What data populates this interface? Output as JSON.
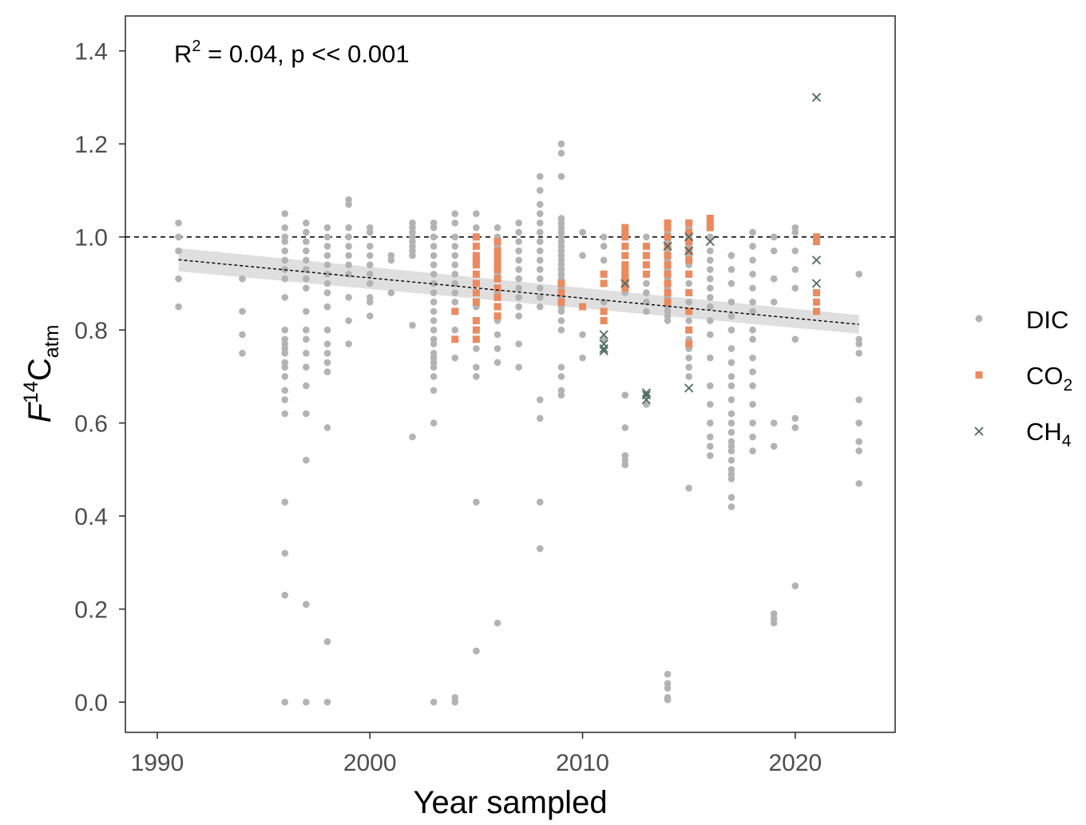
{
  "colors": {
    "DIC": "#b3b3b3",
    "CO2": "#ec8a5f",
    "CH4": "#4f6b63",
    "band": "#d9d9d9",
    "panel_border": "#333333",
    "tick": "#333333"
  },
  "annotation": {
    "r_letter": "R",
    "r_exp": "2",
    "rest": " = 0.04, p << 0.001"
  },
  "legend": {
    "position": "right",
    "items": [
      {
        "key": "DIC",
        "base": "DIC",
        "sub": "",
        "marker": "circle"
      },
      {
        "key": "CO2",
        "base": "CO",
        "sub": "2",
        "marker": "square"
      },
      {
        "key": "CH4",
        "base": "CH",
        "sub": "4",
        "marker": "cross"
      }
    ]
  },
  "chart_data": {
    "type": "scatter",
    "xlabel": "Year sampled",
    "ylabel": {
      "f": "F",
      "sup": "14",
      "c": "C",
      "sub": "atm"
    },
    "xlim": [
      1988.5,
      2024.7
    ],
    "ylim": [
      -0.065,
      1.475
    ],
    "xticks": [
      1990,
      2000,
      2010,
      2020
    ],
    "xtick_labels": [
      "1990",
      "2000",
      "2010",
      "2020"
    ],
    "yticks": [
      0.0,
      0.2,
      0.4,
      0.6,
      0.8,
      1.0,
      1.2,
      1.4
    ],
    "ytick_labels": [
      "0.0",
      "0.2",
      "0.4",
      "0.6",
      "0.8",
      "1.0",
      "1.2",
      "1.4"
    ],
    "grid": false,
    "reference_line": {
      "y": 1.0,
      "style": "dashed"
    },
    "trend": {
      "x": [
        1991,
        2023
      ],
      "y": [
        0.951,
        0.812
      ],
      "ci_upper": [
        0.976,
        0.832
      ],
      "ci_lower": [
        0.926,
        0.792
      ],
      "style": "dashed"
    },
    "series": [
      {
        "name": "DIC",
        "marker": "circle",
        "x": [
          1991,
          1991,
          1991,
          1991,
          1991,
          1994,
          1994,
          1994,
          1994,
          1996,
          1996,
          1996,
          1996,
          1996,
          1996,
          1996,
          1996,
          1996,
          1996,
          1996,
          1996,
          1996,
          1996,
          1996,
          1996,
          1996,
          1996,
          1996,
          1996,
          1996,
          1996,
          1996,
          1996,
          1997,
          1997,
          1997,
          1997,
          1997,
          1997,
          1997,
          1997,
          1997,
          1997,
          1997,
          1997,
          1997,
          1997,
          1997,
          1997,
          1997,
          1997,
          1998,
          1998,
          1998,
          1998,
          1998,
          1998,
          1998,
          1998,
          1998,
          1998,
          1998,
          1998,
          1998,
          1998,
          1998,
          1998,
          1998,
          1999,
          1999,
          1999,
          1999,
          1999,
          1999,
          1999,
          1999,
          1999,
          1999,
          1999,
          2000,
          2000,
          2000,
          2000,
          2000,
          2000,
          2000,
          2000,
          2000,
          2000,
          2001,
          2001,
          2001,
          2002,
          2002,
          2002,
          2002,
          2002,
          2002,
          2002,
          2002,
          2002,
          2002,
          2003,
          2003,
          2003,
          2003,
          2003,
          2003,
          2003,
          2003,
          2003,
          2003,
          2003,
          2003,
          2003,
          2003,
          2003,
          2003,
          2003,
          2003,
          2003,
          2003,
          2003,
          2003,
          2003,
          2004,
          2004,
          2004,
          2004,
          2004,
          2004,
          2004,
          2004,
          2004,
          2004,
          2004,
          2004,
          2004,
          2004,
          2004,
          2004,
          2005,
          2005,
          2005,
          2005,
          2005,
          2005,
          2005,
          2005,
          2005,
          2005,
          2005,
          2005,
          2005,
          2006,
          2006,
          2006,
          2006,
          2006,
          2006,
          2006,
          2006,
          2006,
          2006,
          2006,
          2006,
          2007,
          2007,
          2007,
          2007,
          2007,
          2007,
          2007,
          2007,
          2007,
          2007,
          2007,
          2007,
          2007,
          2008,
          2008,
          2008,
          2008,
          2008,
          2008,
          2008,
          2008,
          2008,
          2008,
          2008,
          2008,
          2008,
          2008,
          2008,
          2008,
          2008,
          2008,
          2009,
          2009,
          2009,
          2009,
          2009,
          2009,
          2009,
          2009,
          2009,
          2009,
          2009,
          2009,
          2009,
          2009,
          2009,
          2009,
          2009,
          2009,
          2009,
          2009,
          2009,
          2009,
          2009,
          2009,
          2009,
          2009,
          2009,
          2009,
          2009,
          2009,
          2010,
          2010,
          2010,
          2010,
          2011,
          2011,
          2011,
          2011,
          2011,
          2011,
          2012,
          2012,
          2012,
          2012,
          2012,
          2012,
          2012,
          2012,
          2012,
          2012,
          2012,
          2012,
          2012,
          2013,
          2013,
          2013,
          2013,
          2013,
          2013,
          2013,
          2013,
          2013,
          2013,
          2013,
          2014,
          2014,
          2014,
          2014,
          2014,
          2014,
          2014,
          2014,
          2014,
          2014,
          2014,
          2014,
          2014,
          2014,
          2014,
          2014,
          2014,
          2014,
          2014,
          2014,
          2014,
          2014,
          2014,
          2014,
          2014,
          2014,
          2014,
          2015,
          2015,
          2015,
          2015,
          2015,
          2015,
          2015,
          2015,
          2015,
          2015,
          2015,
          2015,
          2015,
          2015,
          2015,
          2015,
          2015,
          2015,
          2016,
          2016,
          2016,
          2016,
          2016,
          2016,
          2016,
          2016,
          2016,
          2016,
          2016,
          2016,
          2016,
          2016,
          2016,
          2016,
          2016,
          2016,
          2017,
          2017,
          2017,
          2017,
          2017,
          2017,
          2017,
          2017,
          2017,
          2017,
          2017,
          2017,
          2017,
          2017,
          2017,
          2017,
          2017,
          2017,
          2017,
          2017,
          2017,
          2017,
          2017,
          2017,
          2018,
          2018,
          2018,
          2018,
          2018,
          2018,
          2018,
          2018,
          2018,
          2018,
          2018,
          2018,
          2018,
          2018,
          2018,
          2018,
          2019,
          2019,
          2019,
          2019,
          2019,
          2019,
          2019,
          2019,
          2019,
          2020,
          2020,
          2020,
          2020,
          2020,
          2020,
          2020,
          2020,
          2020,
          2023,
          2023,
          2023,
          2023,
          2023,
          2023,
          2023,
          2023,
          2023
        ],
        "y": [
          1.03,
          1.0,
          0.97,
          0.91,
          0.85,
          0.91,
          0.84,
          0.79,
          0.75,
          1.05,
          1.02,
          1.0,
          0.99,
          0.97,
          0.95,
          0.93,
          0.91,
          0.87,
          0.8,
          0.78,
          0.77,
          0.76,
          0.75,
          0.73,
          0.72,
          0.7,
          0.67,
          0.65,
          0.62,
          0.43,
          0.32,
          0.23,
          0.0,
          1.03,
          1.01,
          0.99,
          0.97,
          0.95,
          0.93,
          0.91,
          0.89,
          0.84,
          0.8,
          0.78,
          0.75,
          0.72,
          0.68,
          0.62,
          0.52,
          0.21,
          0.0,
          1.02,
          1.0,
          0.98,
          0.96,
          0.94,
          0.92,
          0.9,
          0.88,
          0.85,
          0.8,
          0.77,
          0.75,
          0.73,
          0.71,
          0.59,
          0.13,
          0.0,
          1.08,
          1.07,
          1.02,
          1.0,
          0.98,
          0.96,
          0.94,
          0.92,
          0.87,
          0.82,
          0.77,
          1.02,
          1.01,
          0.98,
          0.96,
          0.94,
          0.92,
          0.9,
          0.87,
          0.86,
          0.83,
          0.96,
          0.95,
          0.88,
          1.03,
          1.02,
          1.01,
          1.0,
          0.99,
          0.98,
          0.97,
          0.96,
          0.81,
          0.57,
          1.03,
          1.02,
          1.0,
          0.98,
          0.96,
          0.94,
          0.92,
          0.9,
          0.88,
          0.86,
          0.84,
          0.82,
          0.8,
          0.78,
          0.77,
          0.75,
          0.74,
          0.73,
          0.72,
          0.7,
          0.67,
          0.6,
          0.0,
          1.05,
          1.03,
          1.0,
          0.98,
          0.96,
          0.94,
          0.92,
          0.9,
          0.88,
          0.86,
          0.84,
          0.8,
          0.78,
          0.74,
          0.0,
          0.01,
          1.05,
          1.02,
          1.0,
          0.98,
          0.95,
          0.9,
          0.85,
          0.8,
          0.76,
          0.72,
          0.7,
          0.43,
          0.11,
          1.02,
          1.0,
          0.98,
          0.95,
          0.92,
          0.88,
          0.85,
          0.82,
          0.79,
          0.76,
          0.73,
          0.17,
          1.03,
          1.01,
          0.99,
          0.97,
          0.95,
          0.93,
          0.91,
          0.89,
          0.87,
          0.85,
          0.83,
          0.77,
          0.72,
          1.13,
          1.1,
          1.07,
          1.05,
          1.03,
          1.01,
          0.99,
          0.97,
          0.95,
          0.93,
          0.91,
          0.89,
          0.87,
          0.85,
          0.65,
          0.61,
          0.43,
          0.33,
          1.2,
          1.18,
          1.13,
          1.04,
          1.03,
          1.02,
          1.01,
          1.0,
          0.99,
          0.98,
          0.97,
          0.96,
          0.95,
          0.94,
          0.93,
          0.92,
          0.91,
          0.9,
          0.89,
          0.88,
          0.87,
          0.86,
          0.85,
          0.84,
          0.82,
          0.8,
          0.72,
          0.7,
          0.67,
          0.66,
          1.01,
          0.96,
          0.79,
          0.74,
          1.0,
          0.98,
          0.95,
          0.86,
          0.82,
          0.78,
          1.02,
          1.0,
          0.98,
          0.96,
          0.94,
          0.92,
          0.9,
          0.88,
          0.66,
          0.59,
          0.53,
          0.52,
          0.51,
          1.0,
          0.98,
          0.96,
          0.94,
          0.92,
          0.9,
          0.88,
          0.86,
          0.84,
          0.66,
          0.64,
          1.03,
          1.02,
          1.01,
          1.0,
          0.99,
          0.98,
          0.97,
          0.96,
          0.95,
          0.94,
          0.93,
          0.92,
          0.91,
          0.9,
          0.89,
          0.88,
          0.87,
          0.86,
          0.85,
          0.84,
          0.83,
          0.82,
          0.06,
          0.04,
          0.03,
          0.01,
          0.005,
          1.02,
          1.0,
          0.98,
          0.96,
          0.94,
          0.92,
          0.9,
          0.88,
          0.86,
          0.84,
          0.82,
          0.8,
          0.78,
          0.76,
          0.74,
          0.72,
          0.7,
          0.46,
          1.03,
          1.0,
          0.97,
          0.95,
          0.93,
          0.91,
          0.89,
          0.87,
          0.85,
          0.82,
          0.79,
          0.74,
          0.68,
          0.64,
          0.6,
          0.57,
          0.55,
          0.53,
          0.96,
          0.93,
          0.9,
          0.86,
          0.83,
          0.8,
          0.76,
          0.73,
          0.7,
          0.68,
          0.65,
          0.62,
          0.6,
          0.58,
          0.56,
          0.55,
          0.54,
          0.52,
          0.5,
          0.49,
          0.48,
          0.44,
          0.42,
          0.96,
          1.01,
          0.98,
          0.95,
          0.92,
          0.89,
          0.86,
          0.84,
          0.8,
          0.78,
          0.74,
          0.71,
          0.68,
          0.64,
          0.6,
          0.57,
          0.54,
          1.0,
          0.97,
          0.91,
          0.86,
          0.6,
          0.55,
          0.19,
          0.18,
          0.17,
          1.02,
          1.01,
          0.97,
          0.93,
          0.89,
          0.78,
          0.61,
          0.59,
          0.25,
          0.92,
          0.78,
          0.77,
          0.75,
          0.65,
          0.6,
          0.56,
          0.54,
          0.47
        ]
      },
      {
        "name": "CO2",
        "marker": "square",
        "x": [
          2004,
          2004,
          2005,
          2005,
          2005,
          2005,
          2005,
          2005,
          2005,
          2005,
          2005,
          2005,
          2005,
          2005,
          2006,
          2006,
          2006,
          2006,
          2006,
          2006,
          2006,
          2006,
          2006,
          2006,
          2006,
          2009,
          2009,
          2009,
          2010,
          2011,
          2011,
          2011,
          2011,
          2012,
          2012,
          2012,
          2012,
          2012,
          2012,
          2012,
          2012,
          2012,
          2012,
          2012,
          2012,
          2013,
          2013,
          2013,
          2013,
          2014,
          2014,
          2014,
          2014,
          2014,
          2014,
          2014,
          2014,
          2014,
          2014,
          2015,
          2015,
          2015,
          2015,
          2015,
          2015,
          2015,
          2015,
          2015,
          2015,
          2016,
          2016,
          2016,
          2021,
          2021,
          2021,
          2021,
          2021
        ],
        "y": [
          0.84,
          0.78,
          1.0,
          0.98,
          0.96,
          0.95,
          0.94,
          0.92,
          0.9,
          0.88,
          0.86,
          0.82,
          0.8,
          0.78,
          0.99,
          0.97,
          0.95,
          0.93,
          0.91,
          0.89,
          0.87,
          0.85,
          0.83,
          0.94,
          0.96,
          0.9,
          0.88,
          0.86,
          0.85,
          0.92,
          0.9,
          0.84,
          0.82,
          1.02,
          1.01,
          1.0,
          0.98,
          0.96,
          0.94,
          0.93,
          0.92,
          0.91,
          0.9,
          0.89,
          0.92,
          0.98,
          0.96,
          0.94,
          0.92,
          1.03,
          1.02,
          1.0,
          0.98,
          0.96,
          0.94,
          0.92,
          0.9,
          0.88,
          0.86,
          1.03,
          1.01,
          0.99,
          0.97,
          0.95,
          0.92,
          0.88,
          0.84,
          0.8,
          0.77,
          1.04,
          1.03,
          1.02,
          1.0,
          0.99,
          0.88,
          0.86,
          0.84
        ]
      },
      {
        "name": "CH4",
        "marker": "cross",
        "x": [
          2011,
          2011,
          2011,
          2011,
          2012,
          2013,
          2013,
          2013,
          2014,
          2015,
          2015,
          2015,
          2016,
          2021,
          2021,
          2021
        ],
        "y": [
          0.79,
          0.77,
          0.76,
          0.755,
          0.9,
          0.665,
          0.66,
          0.65,
          0.98,
          1.0,
          0.97,
          0.675,
          0.99,
          1.3,
          0.95,
          0.9
        ]
      }
    ]
  }
}
